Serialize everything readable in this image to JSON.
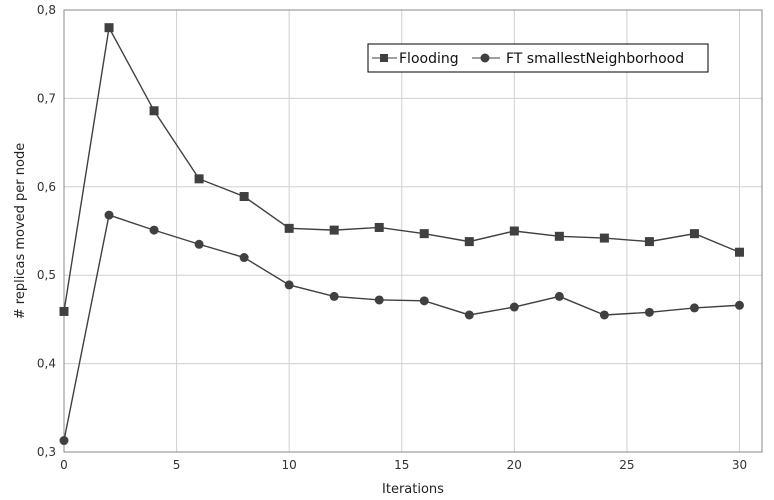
{
  "chart_data": {
    "type": "line",
    "xlabel": "Iterations",
    "ylabel": "# replicas moved per node",
    "xlim": [
      0,
      31
    ],
    "ylim": [
      0.3,
      0.8
    ],
    "x_ticks": [
      "0",
      "5",
      "10",
      "15",
      "20",
      "25",
      "30"
    ],
    "y_ticks": [
      "0,3",
      "0,4",
      "0,5",
      "0,6",
      "0,7",
      "0,8"
    ],
    "grid": true,
    "legend_position": "top-right",
    "x": [
      0,
      2,
      4,
      6,
      8,
      10,
      12,
      14,
      16,
      18,
      20,
      22,
      24,
      26,
      28,
      30
    ],
    "series": [
      {
        "name": "Flooding",
        "marker": "square",
        "values": [
          0.459,
          0.78,
          0.686,
          0.609,
          0.589,
          0.553,
          0.551,
          0.554,
          0.547,
          0.538,
          0.55,
          0.544,
          0.542,
          0.538,
          0.547,
          0.526
        ]
      },
      {
        "name": "FT smallestNeighborhood",
        "marker": "circle",
        "values": [
          0.313,
          0.568,
          0.551,
          0.535,
          0.52,
          0.489,
          0.476,
          0.472,
          0.471,
          0.455,
          0.464,
          0.476,
          0.455,
          0.458,
          0.463,
          0.466
        ]
      }
    ]
  }
}
